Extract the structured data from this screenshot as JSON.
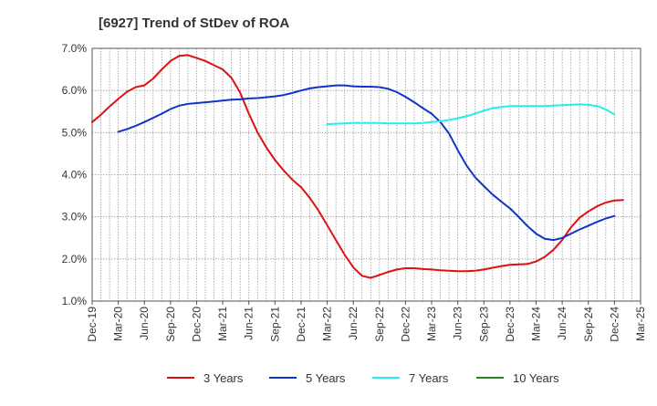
{
  "chart_data": {
    "type": "line",
    "title": "[6927]  Trend of StDev of ROA",
    "xlabel": "",
    "ylabel": "",
    "x_ticks": [
      "Dec-19",
      "Mar-20",
      "Jun-20",
      "Sep-20",
      "Dec-20",
      "Mar-21",
      "Jun-21",
      "Sep-21",
      "Dec-21",
      "Mar-22",
      "Jun-22",
      "Sep-22",
      "Dec-22",
      "Mar-23",
      "Jun-23",
      "Sep-23",
      "Dec-23",
      "Mar-24",
      "Jun-24",
      "Sep-24",
      "Dec-24",
      "Mar-25"
    ],
    "y_ticks": [
      "1.0%",
      "2.0%",
      "3.0%",
      "4.0%",
      "5.0%",
      "6.0%",
      "7.0%"
    ],
    "ylim": [
      1.0,
      7.0
    ],
    "grid": true,
    "legend_position": "bottom",
    "series": [
      {
        "name": "3 Years",
        "color": "#dd1111",
        "values": [
          {
            "x": "Dec-19",
            "y": 5.25
          },
          {
            "x": "Jan-20",
            "y": 5.42
          },
          {
            "x": "Feb-20",
            "y": 5.62
          },
          {
            "x": "Mar-20",
            "y": 5.8
          },
          {
            "x": "Apr-20",
            "y": 5.97
          },
          {
            "x": "May-20",
            "y": 6.08
          },
          {
            "x": "Jun-20",
            "y": 6.12
          },
          {
            "x": "Jul-20",
            "y": 6.28
          },
          {
            "x": "Aug-20",
            "y": 6.5
          },
          {
            "x": "Sep-20",
            "y": 6.7
          },
          {
            "x": "Oct-20",
            "y": 6.82
          },
          {
            "x": "Nov-20",
            "y": 6.84
          },
          {
            "x": "Dec-20",
            "y": 6.77
          },
          {
            "x": "Jan-21",
            "y": 6.7
          },
          {
            "x": "Feb-21",
            "y": 6.6
          },
          {
            "x": "Mar-21",
            "y": 6.5
          },
          {
            "x": "Apr-21",
            "y": 6.3
          },
          {
            "x": "May-21",
            "y": 5.95
          },
          {
            "x": "Jun-21",
            "y": 5.45
          },
          {
            "x": "Jul-21",
            "y": 5.0
          },
          {
            "x": "Aug-21",
            "y": 4.65
          },
          {
            "x": "Sep-21",
            "y": 4.35
          },
          {
            "x": "Oct-21",
            "y": 4.1
          },
          {
            "x": "Nov-21",
            "y": 3.88
          },
          {
            "x": "Dec-21",
            "y": 3.7
          },
          {
            "x": "Jan-22",
            "y": 3.45
          },
          {
            "x": "Feb-22",
            "y": 3.15
          },
          {
            "x": "Mar-22",
            "y": 2.8
          },
          {
            "x": "Apr-22",
            "y": 2.45
          },
          {
            "x": "May-22",
            "y": 2.1
          },
          {
            "x": "Jun-22",
            "y": 1.8
          },
          {
            "x": "Jul-22",
            "y": 1.6
          },
          {
            "x": "Aug-22",
            "y": 1.55
          },
          {
            "x": "Sep-22",
            "y": 1.62
          },
          {
            "x": "Oct-22",
            "y": 1.69
          },
          {
            "x": "Nov-22",
            "y": 1.75
          },
          {
            "x": "Dec-22",
            "y": 1.78
          },
          {
            "x": "Jan-23",
            "y": 1.78
          },
          {
            "x": "Feb-23",
            "y": 1.76
          },
          {
            "x": "Mar-23",
            "y": 1.75
          },
          {
            "x": "Apr-23",
            "y": 1.73
          },
          {
            "x": "May-23",
            "y": 1.72
          },
          {
            "x": "Jun-23",
            "y": 1.71
          },
          {
            "x": "Jul-23",
            "y": 1.71
          },
          {
            "x": "Aug-23",
            "y": 1.72
          },
          {
            "x": "Sep-23",
            "y": 1.75
          },
          {
            "x": "Oct-23",
            "y": 1.79
          },
          {
            "x": "Nov-23",
            "y": 1.83
          },
          {
            "x": "Dec-23",
            "y": 1.86
          },
          {
            "x": "Jan-24",
            "y": 1.87
          },
          {
            "x": "Feb-24",
            "y": 1.88
          },
          {
            "x": "Mar-24",
            "y": 1.94
          },
          {
            "x": "Apr-24",
            "y": 2.05
          },
          {
            "x": "May-24",
            "y": 2.22
          },
          {
            "x": "Jun-24",
            "y": 2.45
          },
          {
            "x": "Jul-24",
            "y": 2.75
          },
          {
            "x": "Aug-24",
            "y": 2.98
          },
          {
            "x": "Sep-24",
            "y": 3.13
          },
          {
            "x": "Oct-24",
            "y": 3.25
          },
          {
            "x": "Nov-24",
            "y": 3.34
          },
          {
            "x": "Dec-24",
            "y": 3.39
          },
          {
            "x": "Jan-25",
            "y": 3.4
          }
        ]
      },
      {
        "name": "5 Years",
        "color": "#1133cc",
        "values": [
          {
            "x": "Mar-20",
            "y": 5.02
          },
          {
            "x": "Apr-20",
            "y": 5.08
          },
          {
            "x": "May-20",
            "y": 5.16
          },
          {
            "x": "Jun-20",
            "y": 5.25
          },
          {
            "x": "Jul-20",
            "y": 5.35
          },
          {
            "x": "Aug-20",
            "y": 5.45
          },
          {
            "x": "Sep-20",
            "y": 5.56
          },
          {
            "x": "Oct-20",
            "y": 5.64
          },
          {
            "x": "Nov-20",
            "y": 5.68
          },
          {
            "x": "Dec-20",
            "y": 5.7
          },
          {
            "x": "Jan-21",
            "y": 5.72
          },
          {
            "x": "Feb-21",
            "y": 5.74
          },
          {
            "x": "Mar-21",
            "y": 5.76
          },
          {
            "x": "Apr-21",
            "y": 5.78
          },
          {
            "x": "May-21",
            "y": 5.79
          },
          {
            "x": "Jun-21",
            "y": 5.81
          },
          {
            "x": "Jul-21",
            "y": 5.82
          },
          {
            "x": "Aug-21",
            "y": 5.84
          },
          {
            "x": "Sep-21",
            "y": 5.86
          },
          {
            "x": "Oct-21",
            "y": 5.89
          },
          {
            "x": "Nov-21",
            "y": 5.94
          },
          {
            "x": "Dec-21",
            "y": 6.0
          },
          {
            "x": "Jan-22",
            "y": 6.05
          },
          {
            "x": "Feb-22",
            "y": 6.08
          },
          {
            "x": "Mar-22",
            "y": 6.1
          },
          {
            "x": "Apr-22",
            "y": 6.12
          },
          {
            "x": "May-22",
            "y": 6.12
          },
          {
            "x": "Jun-22",
            "y": 6.1
          },
          {
            "x": "Jul-22",
            "y": 6.09
          },
          {
            "x": "Aug-22",
            "y": 6.09
          },
          {
            "x": "Sep-22",
            "y": 6.08
          },
          {
            "x": "Oct-22",
            "y": 6.04
          },
          {
            "x": "Nov-22",
            "y": 5.96
          },
          {
            "x": "Dec-22",
            "y": 5.85
          },
          {
            "x": "Jan-23",
            "y": 5.72
          },
          {
            "x": "Feb-23",
            "y": 5.58
          },
          {
            "x": "Mar-23",
            "y": 5.45
          },
          {
            "x": "Apr-23",
            "y": 5.25
          },
          {
            "x": "May-23",
            "y": 4.98
          },
          {
            "x": "Jun-23",
            "y": 4.58
          },
          {
            "x": "Jul-23",
            "y": 4.22
          },
          {
            "x": "Aug-23",
            "y": 3.94
          },
          {
            "x": "Sep-23",
            "y": 3.73
          },
          {
            "x": "Oct-23",
            "y": 3.53
          },
          {
            "x": "Nov-23",
            "y": 3.36
          },
          {
            "x": "Dec-23",
            "y": 3.2
          },
          {
            "x": "Jan-24",
            "y": 3.0
          },
          {
            "x": "Feb-24",
            "y": 2.78
          },
          {
            "x": "Mar-24",
            "y": 2.6
          },
          {
            "x": "Apr-24",
            "y": 2.48
          },
          {
            "x": "May-24",
            "y": 2.45
          },
          {
            "x": "Jun-24",
            "y": 2.5
          },
          {
            "x": "Jul-24",
            "y": 2.6
          },
          {
            "x": "Aug-24",
            "y": 2.7
          },
          {
            "x": "Sep-24",
            "y": 2.79
          },
          {
            "x": "Oct-24",
            "y": 2.88
          },
          {
            "x": "Nov-24",
            "y": 2.96
          },
          {
            "x": "Dec-24",
            "y": 3.02
          }
        ]
      },
      {
        "name": "7 Years",
        "color": "#22eeee",
        "values": [
          {
            "x": "Mar-22",
            "y": 5.2
          },
          {
            "x": "Apr-22",
            "y": 5.21
          },
          {
            "x": "May-22",
            "y": 5.22
          },
          {
            "x": "Jun-22",
            "y": 5.23
          },
          {
            "x": "Jul-22",
            "y": 5.23
          },
          {
            "x": "Aug-22",
            "y": 5.23
          },
          {
            "x": "Sep-22",
            "y": 5.23
          },
          {
            "x": "Oct-22",
            "y": 5.22
          },
          {
            "x": "Nov-22",
            "y": 5.22
          },
          {
            "x": "Dec-22",
            "y": 5.22
          },
          {
            "x": "Jan-23",
            "y": 5.22
          },
          {
            "x": "Feb-23",
            "y": 5.23
          },
          {
            "x": "Mar-23",
            "y": 5.25
          },
          {
            "x": "Apr-23",
            "y": 5.27
          },
          {
            "x": "May-23",
            "y": 5.3
          },
          {
            "x": "Jun-23",
            "y": 5.34
          },
          {
            "x": "Jul-23",
            "y": 5.39
          },
          {
            "x": "Aug-23",
            "y": 5.45
          },
          {
            "x": "Sep-23",
            "y": 5.52
          },
          {
            "x": "Oct-23",
            "y": 5.58
          },
          {
            "x": "Nov-23",
            "y": 5.61
          },
          {
            "x": "Dec-23",
            "y": 5.63
          },
          {
            "x": "Jan-24",
            "y": 5.63
          },
          {
            "x": "Feb-24",
            "y": 5.63
          },
          {
            "x": "Mar-24",
            "y": 5.63
          },
          {
            "x": "Apr-24",
            "y": 5.63
          },
          {
            "x": "May-24",
            "y": 5.64
          },
          {
            "x": "Jun-24",
            "y": 5.65
          },
          {
            "x": "Jul-24",
            "y": 5.66
          },
          {
            "x": "Aug-24",
            "y": 5.67
          },
          {
            "x": "Sep-24",
            "y": 5.66
          },
          {
            "x": "Oct-24",
            "y": 5.63
          },
          {
            "x": "Nov-24",
            "y": 5.55
          },
          {
            "x": "Dec-24",
            "y": 5.43
          }
        ]
      },
      {
        "name": "10 Years",
        "color": "#228822",
        "values": []
      }
    ]
  }
}
